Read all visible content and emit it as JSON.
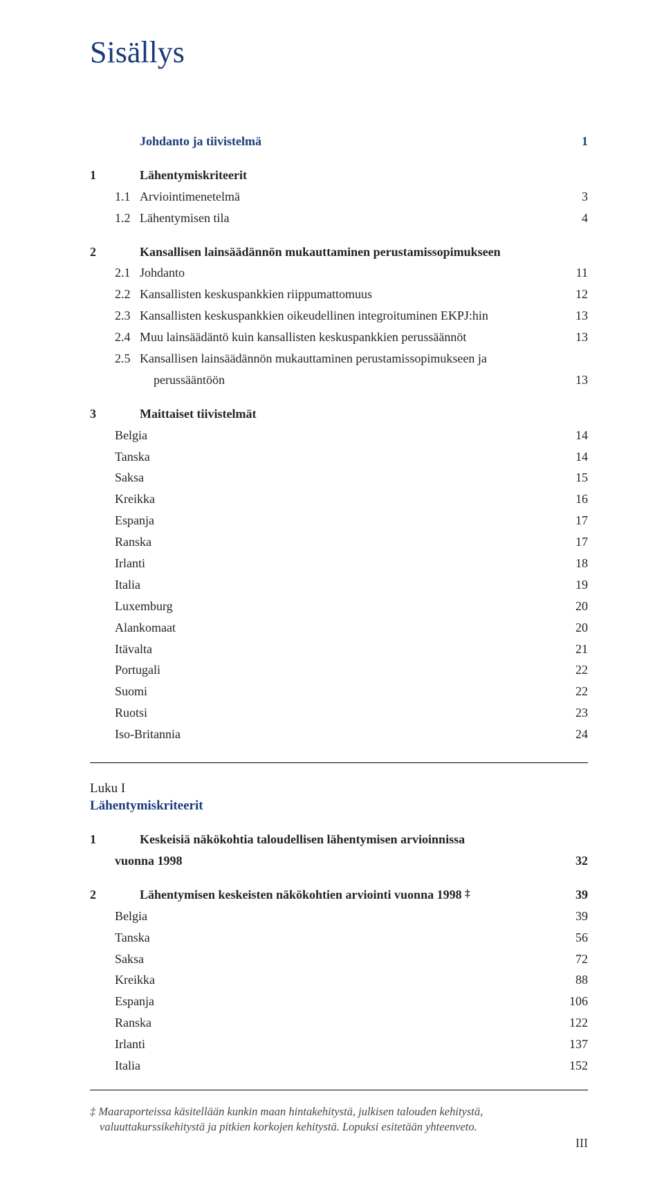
{
  "title": "Sisällys",
  "sections": [
    {
      "num": "",
      "sub": "",
      "label": "Johdanto ja tiivistelmä",
      "page": "1",
      "style": "heading-color"
    },
    {
      "gap": "section-gap"
    },
    {
      "num": "1",
      "sub": "",
      "label": "Lähentymiskriteerit",
      "page": "",
      "style": "bold"
    },
    {
      "num": "",
      "sub": "1.1",
      "label": "Arviointimenetelmä",
      "page": "3"
    },
    {
      "num": "",
      "sub": "1.2",
      "label": "Lähentymisen tila",
      "page": "4"
    },
    {
      "gap": "section-gap"
    },
    {
      "num": "2",
      "sub": "",
      "label": "Kansallisen lainsäädännön mukauttaminen perustamissopimukseen",
      "page": "",
      "style": "bold"
    },
    {
      "num": "",
      "sub": "2.1",
      "label": "Johdanto",
      "page": "11"
    },
    {
      "num": "",
      "sub": "2.2",
      "label": "Kansallisten keskuspankkien riippumattomuus",
      "page": "12"
    },
    {
      "num": "",
      "sub": "2.3",
      "label": "Kansallisten keskuspankkien oikeudellinen integroituminen EKPJ:hin",
      "page": "13"
    },
    {
      "num": "",
      "sub": "2.4",
      "label": "Muu lainsäädäntö kuin kansallisten keskuspankkien perussäännöt",
      "page": "13"
    },
    {
      "num": "",
      "sub": "2.5",
      "label": "Kansallisen lainsäädännön mukauttaminen perustamissopimukseen ja",
      "page": ""
    },
    {
      "continuation": true,
      "label": "perussääntöön",
      "page": "13"
    },
    {
      "gap": "section-gap"
    },
    {
      "num": "3",
      "sub": "",
      "label": "Maittaiset tiivistelmät",
      "page": "",
      "style": "bold"
    },
    {
      "num": "",
      "sub": "",
      "label": "Belgia",
      "page": "14",
      "indent": true
    },
    {
      "num": "",
      "sub": "",
      "label": "Tanska",
      "page": "14",
      "indent": true
    },
    {
      "num": "",
      "sub": "",
      "label": "Saksa",
      "page": "15",
      "indent": true
    },
    {
      "num": "",
      "sub": "",
      "label": "Kreikka",
      "page": "16",
      "indent": true
    },
    {
      "num": "",
      "sub": "",
      "label": "Espanja",
      "page": "17",
      "indent": true
    },
    {
      "num": "",
      "sub": "",
      "label": "Ranska",
      "page": "17",
      "indent": true
    },
    {
      "num": "",
      "sub": "",
      "label": "Irlanti",
      "page": "18",
      "indent": true
    },
    {
      "num": "",
      "sub": "",
      "label": "Italia",
      "page": "19",
      "indent": true
    },
    {
      "num": "",
      "sub": "",
      "label": "Luxemburg",
      "page": "20",
      "indent": true
    },
    {
      "num": "",
      "sub": "",
      "label": "Alankomaat",
      "page": "20",
      "indent": true
    },
    {
      "num": "",
      "sub": "",
      "label": "Itävalta",
      "page": "21",
      "indent": true
    },
    {
      "num": "",
      "sub": "",
      "label": "Portugali",
      "page": "22",
      "indent": true
    },
    {
      "num": "",
      "sub": "",
      "label": "Suomi",
      "page": "22",
      "indent": true
    },
    {
      "num": "",
      "sub": "",
      "label": "Ruotsi",
      "page": "23",
      "indent": true
    },
    {
      "num": "",
      "sub": "",
      "label": "Iso-Britannia",
      "page": "24",
      "indent": true
    }
  ],
  "luku_label": "Luku I",
  "luku_title": "Lähentymiskriteerit",
  "sections2": [
    {
      "num": "1",
      "sub": "",
      "label": "Keskeisiä näkökohtia taloudellisen lähentymisen arvioinnissa",
      "page": "",
      "style": "bold"
    },
    {
      "num": "",
      "sub": "",
      "label": "vuonna 1998",
      "page": "32",
      "style": "bold",
      "indent": true
    },
    {
      "gap": "section-gap"
    },
    {
      "num": "2",
      "sub": "",
      "label": "Lähentymisen keskeisten näkökohtien arviointi vuonna 1998 ‡",
      "page": "39",
      "style": "bold",
      "dagger": true
    },
    {
      "num": "",
      "sub": "",
      "label": "Belgia",
      "page": "39",
      "indent": true
    },
    {
      "num": "",
      "sub": "",
      "label": "Tanska",
      "page": "56",
      "indent": true
    },
    {
      "num": "",
      "sub": "",
      "label": "Saksa",
      "page": "72",
      "indent": true
    },
    {
      "num": "",
      "sub": "",
      "label": "Kreikka",
      "page": "88",
      "indent": true
    },
    {
      "num": "",
      "sub": "",
      "label": "Espanja",
      "page": "106",
      "indent": true
    },
    {
      "num": "",
      "sub": "",
      "label": "Ranska",
      "page": "122",
      "indent": true
    },
    {
      "num": "",
      "sub": "",
      "label": "Irlanti",
      "page": "137",
      "indent": true
    },
    {
      "num": "",
      "sub": "",
      "label": "Italia",
      "page": "152",
      "indent": true
    }
  ],
  "footnote_marker": "‡",
  "footnote_text": "Maaraporteissa käsitellään kunkin maan hintakehitystä, julkisen talouden kehitystä, valuuttakurssikehitystä ja pitkien korkojen kehitystä. Lopuksi esitetään yhteenveto.",
  "page_number": "III"
}
